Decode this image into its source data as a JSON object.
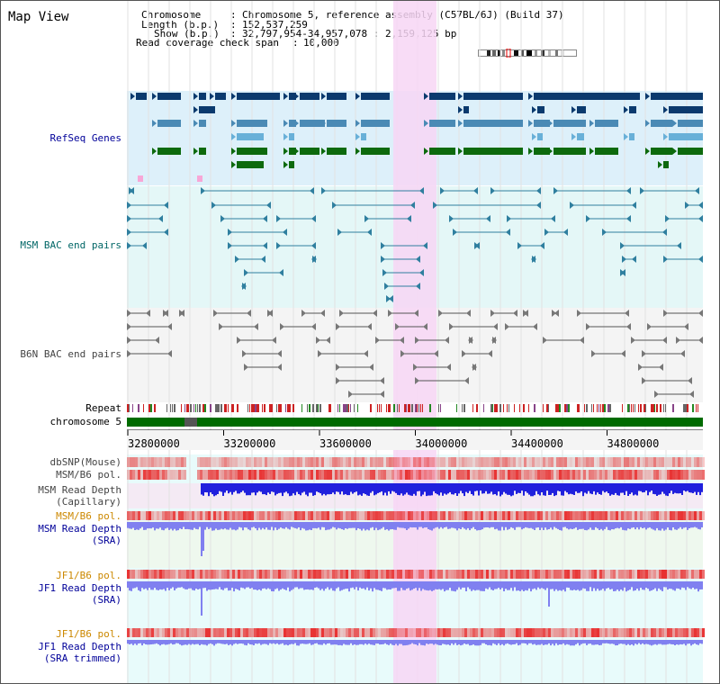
{
  "window": {
    "title": "Map View"
  },
  "info": {
    "chromosome_label": "Chromosome",
    "chromosome_value": "Chromosome 5, reference assembly (C57BL/6J) (Build 37)",
    "length_label": "Length (b.p.)",
    "length_value": "152,537,259",
    "show_label": "Show (b.p.)",
    "show_value": "32,797,954-34,957,078 : 2,159,125 bp",
    "coverage_label": "Read coverage check span",
    "coverage_value": "10,000"
  },
  "tracks": {
    "refseq": "RefSeq Genes",
    "msm_bac": "MSM BAC end pairs",
    "b6n_bac": "B6N BAC end pairs",
    "repeat": "Repeat",
    "chromosome": "chromosome 5",
    "dbsnp": "dbSNP(Mouse)",
    "msm_b6_pol": "MSM/B6 pol.",
    "msm_depth_cap_1": "MSM Read Depth",
    "msm_depth_cap_2": "(Capillary)",
    "msm_b6_pol_2": "MSM/B6 pol.",
    "msm_depth_sra_1": "MSM Read Depth",
    "msm_depth_sra_2": "(SRA)",
    "jf1_pol_1": "JF1/B6 pol.",
    "jf1_depth_sra_1": "JF1 Read Depth",
    "jf1_depth_sra_2": "(SRA)",
    "jf1_pol_2": "JF1/B6 pol.",
    "jf1_depth_trim_1": "JF1 Read Depth",
    "jf1_depth_trim_2": "(SRA trimmed)"
  },
  "axis": {
    "ticks": [
      "32800000",
      "33200000",
      "33600000",
      "34000000",
      "34400000",
      "34800000"
    ]
  },
  "colors": {
    "refseq_dark": "#0b3a6e",
    "refseq_mid": "#4a8ab5",
    "refseq_light": "#68b0d8",
    "refseq_green": "#0d6a0d",
    "msm_bac": "#2f7f9f",
    "b6n_bac": "#555555",
    "highlight": "#f7d6f5",
    "label_blue": "#000099",
    "label_teal": "#006666",
    "label_gray": "#444444",
    "label_orange": "#cc8800",
    "depth_blue": "#2020dd",
    "depth_light": "#8080f0",
    "pol_red": "#e83030"
  }
}
